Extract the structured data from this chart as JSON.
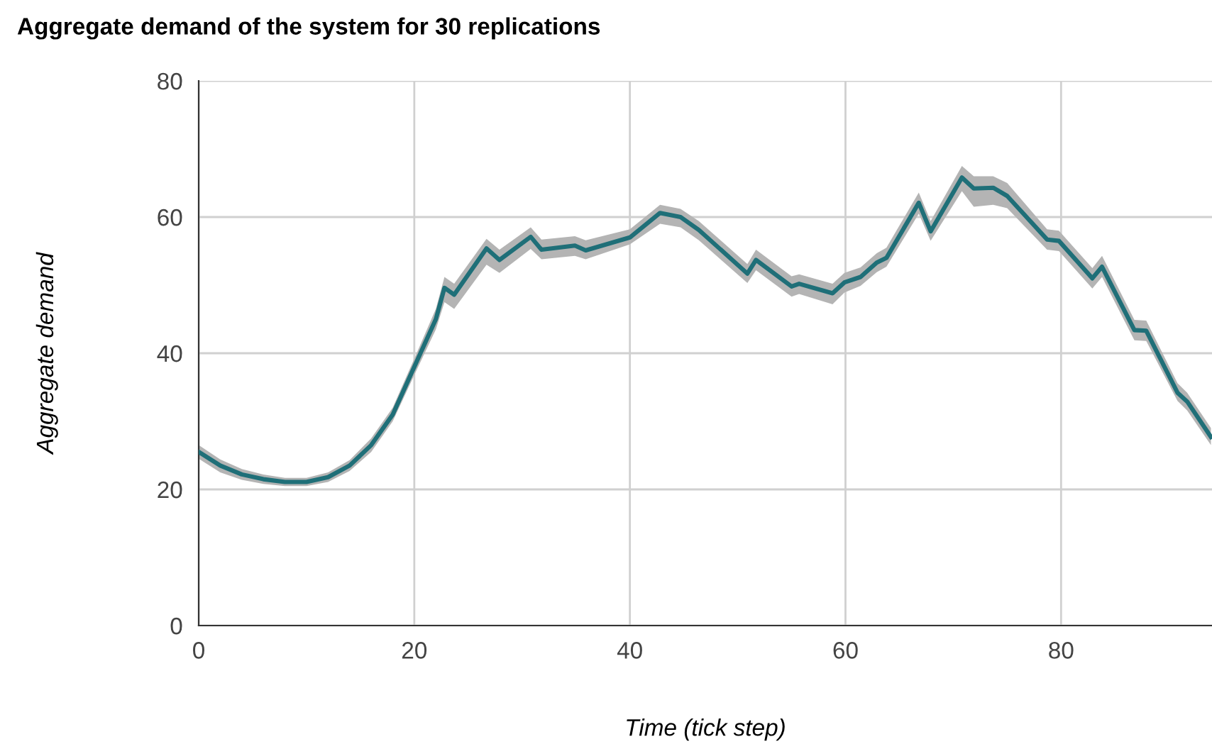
{
  "chart_data": {
    "type": "line",
    "title": "Aggregate demand of the system for 30 replications",
    "xlabel": "Time (tick step)",
    "ylabel": "Aggregate demand",
    "x": [
      0,
      2,
      4,
      6,
      8,
      10,
      12,
      14,
      16,
      18,
      20,
      22,
      22.8,
      23.7,
      26.7,
      27.9,
      30.8,
      31.8,
      34.9,
      35.9,
      40,
      42.8,
      44.7,
      46.4,
      50.9,
      51.7,
      55,
      55.7,
      58.8,
      59.9,
      61.4,
      62.9,
      63.8,
      66.8,
      67.9,
      70.8,
      71.9,
      73.7,
      75,
      78.7,
      79.8,
      82.9,
      83.8,
      86.8,
      87.9,
      90.8,
      91.7,
      93.9
    ],
    "series": [
      {
        "color": "#1f6f78",
        "values": [
          25.5,
          23.5,
          22.2,
          21.5,
          21.1,
          21.1,
          21.8,
          23.5,
          26.5,
          31,
          38,
          45,
          49.6,
          48.6,
          55.4,
          53.7,
          57.1,
          55.2,
          55.8,
          55.1,
          57,
          60.6,
          60,
          58.1,
          51.7,
          53.7,
          49.8,
          50.2,
          48.8,
          50.4,
          51.2,
          53.3,
          54,
          62.1,
          57.9,
          65.8,
          64.2,
          64.3,
          63.1,
          56.7,
          56.5,
          51,
          52.7,
          43.4,
          43.3,
          34.2,
          32.9,
          27.7
        ],
        "lower": [
          24.5,
          22.5,
          21.4,
          20.8,
          20.5,
          20.5,
          21.1,
          22.7,
          25.5,
          30,
          36.8,
          43.5,
          47.5,
          46.5,
          53,
          51.8,
          55.3,
          53.8,
          54.3,
          53.8,
          56,
          59,
          58.5,
          56.6,
          50.3,
          52.2,
          48.3,
          48.7,
          47.2,
          48.9,
          49.9,
          51.9,
          52.7,
          60.5,
          56.5,
          63.8,
          61.5,
          61.8,
          61.3,
          55.2,
          55,
          49.5,
          51.2,
          41.9,
          41.8,
          33,
          31.6,
          26.5
        ],
        "upper": [
          26.5,
          24.4,
          23,
          22.2,
          21.7,
          21.7,
          22.5,
          24.3,
          27.5,
          32,
          39.2,
          46.5,
          51.2,
          50.2,
          56.8,
          55.2,
          58.5,
          56.7,
          57.2,
          56.6,
          58.2,
          61.8,
          61.2,
          59.4,
          53.1,
          55.2,
          51.3,
          51.6,
          50.2,
          51.8,
          52.6,
          54.7,
          55.5,
          63.6,
          59.4,
          67.5,
          66,
          66,
          65,
          58.2,
          58,
          52.5,
          54.3,
          44.9,
          44.8,
          35.6,
          34.2,
          29
        ]
      }
    ],
    "xlim": [
      0,
      94
    ],
    "ylim": [
      0,
      80
    ],
    "xticks": [
      0,
      20,
      40,
      60,
      80
    ],
    "yticks": [
      0,
      20,
      40,
      60,
      80
    ],
    "grid": true,
    "marker": "none",
    "line_style": "solid"
  }
}
